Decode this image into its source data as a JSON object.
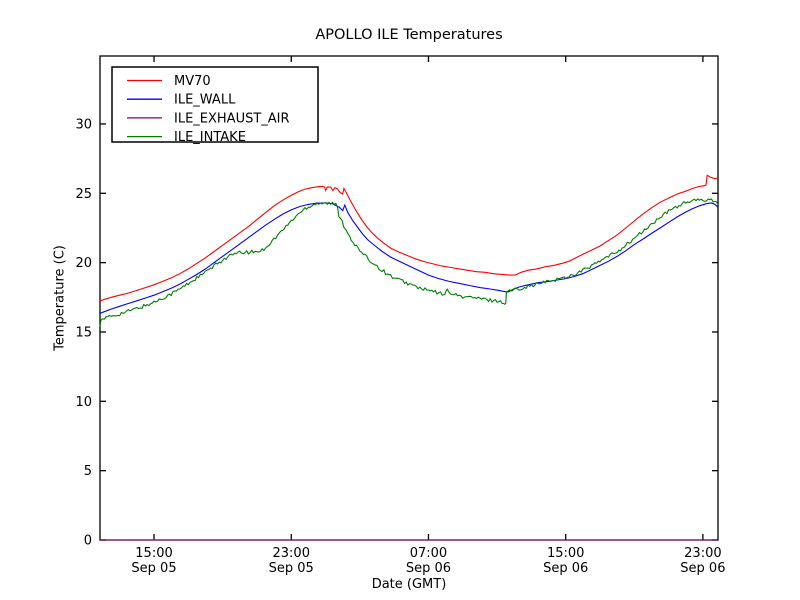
{
  "figure": {
    "background": "#ffffff",
    "text_color": "#000000",
    "axis_color": "#000000"
  },
  "chart_data": {
    "type": "line",
    "title": "APOLLO ILE Temperatures",
    "xlabel": "Date (GMT)",
    "ylabel": "Temperature (C)",
    "xlim_hours": [
      11.85,
      47.88
    ],
    "ylim": [
      0,
      34.9
    ],
    "yticks": [
      0,
      5,
      10,
      15,
      20,
      25,
      30
    ],
    "xticks": [
      {
        "hour": 15,
        "time": "15:00",
        "date": "Sep 05"
      },
      {
        "hour": 23,
        "time": "23:00",
        "date": "Sep 05"
      },
      {
        "hour": 31,
        "time": "07:00",
        "date": "Sep 06"
      },
      {
        "hour": 39,
        "time": "15:00",
        "date": "Sep 06"
      },
      {
        "hour": 47,
        "time": "23:00",
        "date": "Sep 06"
      }
    ],
    "grid": false,
    "legend_position": "upper-left",
    "series": [
      {
        "name": "MV70",
        "color": "#ff0000",
        "noise": 0,
        "points": [
          [
            11.85,
            17.25
          ],
          [
            12.5,
            17.5
          ],
          [
            13,
            17.65
          ],
          [
            13.5,
            17.8
          ],
          [
            14,
            18.0
          ],
          [
            14.5,
            18.2
          ],
          [
            15,
            18.4
          ],
          [
            15.5,
            18.65
          ],
          [
            16,
            18.9
          ],
          [
            16.5,
            19.2
          ],
          [
            17,
            19.55
          ],
          [
            17.5,
            19.95
          ],
          [
            18,
            20.35
          ],
          [
            18.5,
            20.8
          ],
          [
            19,
            21.25
          ],
          [
            19.5,
            21.7
          ],
          [
            20,
            22.15
          ],
          [
            20.5,
            22.6
          ],
          [
            21,
            23.1
          ],
          [
            21.5,
            23.6
          ],
          [
            22,
            24.1
          ],
          [
            22.5,
            24.5
          ],
          [
            23,
            24.85
          ],
          [
            23.4,
            25.1
          ],
          [
            23.8,
            25.3
          ],
          [
            24.2,
            25.4
          ],
          [
            24.6,
            25.48
          ],
          [
            24.85,
            25.5
          ],
          [
            24.95,
            25.45
          ],
          [
            25.0,
            25.2
          ],
          [
            25.1,
            25.45
          ],
          [
            25.3,
            25.45
          ],
          [
            25.42,
            25.2
          ],
          [
            25.55,
            25.4
          ],
          [
            25.7,
            25.3
          ],
          [
            25.85,
            25.05
          ],
          [
            26.0,
            24.95
          ],
          [
            26.07,
            25.35
          ],
          [
            26.25,
            24.95
          ],
          [
            26.5,
            24.35
          ],
          [
            26.8,
            23.7
          ],
          [
            27.1,
            23.1
          ],
          [
            27.4,
            22.6
          ],
          [
            27.7,
            22.15
          ],
          [
            28.0,
            21.8
          ],
          [
            28.4,
            21.4
          ],
          [
            28.8,
            21.05
          ],
          [
            29.3,
            20.75
          ],
          [
            29.8,
            20.5
          ],
          [
            30.3,
            20.25
          ],
          [
            30.8,
            20.05
          ],
          [
            31.3,
            19.9
          ],
          [
            31.8,
            19.75
          ],
          [
            32.3,
            19.65
          ],
          [
            32.8,
            19.55
          ],
          [
            33.3,
            19.45
          ],
          [
            33.8,
            19.35
          ],
          [
            34.3,
            19.3
          ],
          [
            34.8,
            19.2
          ],
          [
            35.3,
            19.15
          ],
          [
            35.7,
            19.1
          ],
          [
            36.05,
            19.1
          ],
          [
            36.4,
            19.3
          ],
          [
            36.8,
            19.45
          ],
          [
            37.3,
            19.55
          ],
          [
            37.8,
            19.7
          ],
          [
            38.3,
            19.8
          ],
          [
            38.8,
            19.95
          ],
          [
            39.2,
            20.1
          ],
          [
            39.6,
            20.35
          ],
          [
            40,
            20.6
          ],
          [
            40.5,
            20.9
          ],
          [
            41,
            21.2
          ],
          [
            41.5,
            21.6
          ],
          [
            42,
            22.0
          ],
          [
            42.5,
            22.5
          ],
          [
            43,
            23.0
          ],
          [
            43.5,
            23.5
          ],
          [
            44,
            23.95
          ],
          [
            44.5,
            24.35
          ],
          [
            45,
            24.65
          ],
          [
            45.5,
            24.95
          ],
          [
            46,
            25.15
          ],
          [
            46.4,
            25.35
          ],
          [
            46.8,
            25.5
          ],
          [
            47.1,
            25.55
          ],
          [
            47.18,
            25.6
          ],
          [
            47.25,
            26.3
          ],
          [
            47.45,
            26.15
          ],
          [
            47.7,
            26.05
          ],
          [
            47.88,
            26.1
          ]
        ]
      },
      {
        "name": "ILE_WALL",
        "color": "#0000ff",
        "noise": 0,
        "points": [
          [
            11.85,
            16.35
          ],
          [
            12.5,
            16.65
          ],
          [
            13,
            16.85
          ],
          [
            13.5,
            17.05
          ],
          [
            14,
            17.25
          ],
          [
            14.5,
            17.45
          ],
          [
            15,
            17.65
          ],
          [
            15.5,
            17.9
          ],
          [
            16,
            18.15
          ],
          [
            16.5,
            18.45
          ],
          [
            17,
            18.8
          ],
          [
            17.5,
            19.15
          ],
          [
            18,
            19.55
          ],
          [
            18.5,
            20.0
          ],
          [
            19,
            20.45
          ],
          [
            19.5,
            20.9
          ],
          [
            20,
            21.35
          ],
          [
            20.5,
            21.8
          ],
          [
            21,
            22.25
          ],
          [
            21.5,
            22.7
          ],
          [
            22,
            23.1
          ],
          [
            22.5,
            23.5
          ],
          [
            23,
            23.8
          ],
          [
            23.5,
            24.05
          ],
          [
            24,
            24.2
          ],
          [
            24.5,
            24.3
          ],
          [
            25,
            24.3
          ],
          [
            25.4,
            24.25
          ],
          [
            25.8,
            24.0
          ],
          [
            26.0,
            23.75
          ],
          [
            26.12,
            24.15
          ],
          [
            26.3,
            23.6
          ],
          [
            26.6,
            23.0
          ],
          [
            26.9,
            22.5
          ],
          [
            27.2,
            22.0
          ],
          [
            27.5,
            21.6
          ],
          [
            27.9,
            21.2
          ],
          [
            28.3,
            20.8
          ],
          [
            28.8,
            20.4
          ],
          [
            29.3,
            20.1
          ],
          [
            29.8,
            19.8
          ],
          [
            30.4,
            19.45
          ],
          [
            31,
            19.1
          ],
          [
            31.6,
            18.85
          ],
          [
            32.2,
            18.65
          ],
          [
            32.8,
            18.5
          ],
          [
            33.4,
            18.35
          ],
          [
            34,
            18.2
          ],
          [
            34.6,
            18.1
          ],
          [
            35.1,
            18.0
          ],
          [
            35.5,
            17.9
          ],
          [
            35.65,
            17.9
          ],
          [
            35.9,
            18.05
          ],
          [
            36.3,
            18.25
          ],
          [
            36.8,
            18.4
          ],
          [
            37.4,
            18.55
          ],
          [
            38,
            18.65
          ],
          [
            38.5,
            18.75
          ],
          [
            39,
            18.85
          ],
          [
            39.5,
            19.0
          ],
          [
            40,
            19.2
          ],
          [
            40.5,
            19.5
          ],
          [
            41,
            19.8
          ],
          [
            41.5,
            20.1
          ],
          [
            42,
            20.45
          ],
          [
            42.5,
            20.85
          ],
          [
            43,
            21.3
          ],
          [
            43.5,
            21.7
          ],
          [
            44,
            22.1
          ],
          [
            44.5,
            22.5
          ],
          [
            45,
            22.9
          ],
          [
            45.5,
            23.3
          ],
          [
            46,
            23.65
          ],
          [
            46.4,
            23.9
          ],
          [
            46.8,
            24.1
          ],
          [
            47.2,
            24.25
          ],
          [
            47.5,
            24.3
          ],
          [
            47.7,
            24.2
          ],
          [
            47.88,
            24.0
          ]
        ]
      },
      {
        "name": "ILE_EXHAUST_AIR",
        "color": "#800080",
        "noise": 0,
        "points": [
          [
            11.85,
            0
          ],
          [
            47.88,
            0
          ]
        ]
      },
      {
        "name": "ILE_INTAKE",
        "color": "#008000",
        "noise": 0.13,
        "points": [
          [
            11.85,
            15.4
          ],
          [
            11.9,
            15.85
          ],
          [
            12.0,
            15.95
          ],
          [
            12.3,
            16.05
          ],
          [
            12.7,
            16.2
          ],
          [
            13,
            16.3
          ],
          [
            13.5,
            16.5
          ],
          [
            14,
            16.7
          ],
          [
            14.5,
            16.9
          ],
          [
            15,
            17.15
          ],
          [
            15.5,
            17.45
          ],
          [
            16,
            17.75
          ],
          [
            16.5,
            18.1
          ],
          [
            17,
            18.5
          ],
          [
            17.5,
            18.9
          ],
          [
            18,
            19.3
          ],
          [
            18.5,
            19.75
          ],
          [
            19,
            20.2
          ],
          [
            19.5,
            20.55
          ],
          [
            20,
            20.7
          ],
          [
            20.5,
            20.75
          ],
          [
            21,
            20.8
          ],
          [
            21.3,
            20.9
          ],
          [
            21.6,
            21.2
          ],
          [
            22,
            21.7
          ],
          [
            22.3,
            22.1
          ],
          [
            22.7,
            22.6
          ],
          [
            23,
            23.0
          ],
          [
            23.4,
            23.5
          ],
          [
            23.8,
            23.9
          ],
          [
            24.2,
            24.15
          ],
          [
            24.6,
            24.3
          ],
          [
            25,
            24.3
          ],
          [
            25.3,
            24.25
          ],
          [
            25.6,
            24.2
          ],
          [
            25.7,
            24.0
          ],
          [
            25.78,
            23.3
          ],
          [
            25.9,
            23.15
          ],
          [
            26.05,
            22.7
          ],
          [
            26.2,
            22.35
          ],
          [
            26.4,
            21.9
          ],
          [
            26.6,
            21.5
          ],
          [
            26.9,
            21.0
          ],
          [
            27.2,
            20.6
          ],
          [
            27.5,
            20.25
          ],
          [
            27.9,
            19.85
          ],
          [
            28.3,
            19.45
          ],
          [
            28.7,
            19.1
          ],
          [
            29.1,
            18.85
          ],
          [
            29.5,
            18.65
          ],
          [
            29.9,
            18.45
          ],
          [
            30.3,
            18.25
          ],
          [
            30.8,
            18.05
          ],
          [
            31.3,
            17.9
          ],
          [
            31.8,
            17.75
          ],
          [
            31.95,
            17.7
          ],
          [
            32.1,
            18.0
          ],
          [
            32.3,
            17.85
          ],
          [
            32.6,
            17.65
          ],
          [
            33,
            17.55
          ],
          [
            33.5,
            17.5
          ],
          [
            34,
            17.4
          ],
          [
            34.5,
            17.3
          ],
          [
            35,
            17.25
          ],
          [
            35.3,
            17.15
          ],
          [
            35.45,
            17.05
          ],
          [
            35.5,
            17.05
          ],
          [
            35.55,
            17.9
          ],
          [
            36.0,
            18.05
          ],
          [
            36.5,
            18.2
          ],
          [
            37,
            18.35
          ],
          [
            37.5,
            18.5
          ],
          [
            38,
            18.65
          ],
          [
            38.5,
            18.8
          ],
          [
            39,
            18.95
          ],
          [
            39.5,
            19.15
          ],
          [
            40,
            19.45
          ],
          [
            40.5,
            19.75
          ],
          [
            41,
            20.1
          ],
          [
            41.5,
            20.45
          ],
          [
            42,
            20.8
          ],
          [
            42.5,
            21.25
          ],
          [
            43,
            21.75
          ],
          [
            43.5,
            22.25
          ],
          [
            44,
            22.75
          ],
          [
            44.5,
            23.25
          ],
          [
            45,
            23.7
          ],
          [
            45.4,
            24.0
          ],
          [
            45.8,
            24.25
          ],
          [
            46.2,
            24.4
          ],
          [
            46.6,
            24.5
          ],
          [
            47,
            24.45
          ],
          [
            47.3,
            24.6
          ],
          [
            47.6,
            24.5
          ],
          [
            47.8,
            24.45
          ],
          [
            47.88,
            24.15
          ]
        ]
      }
    ]
  }
}
